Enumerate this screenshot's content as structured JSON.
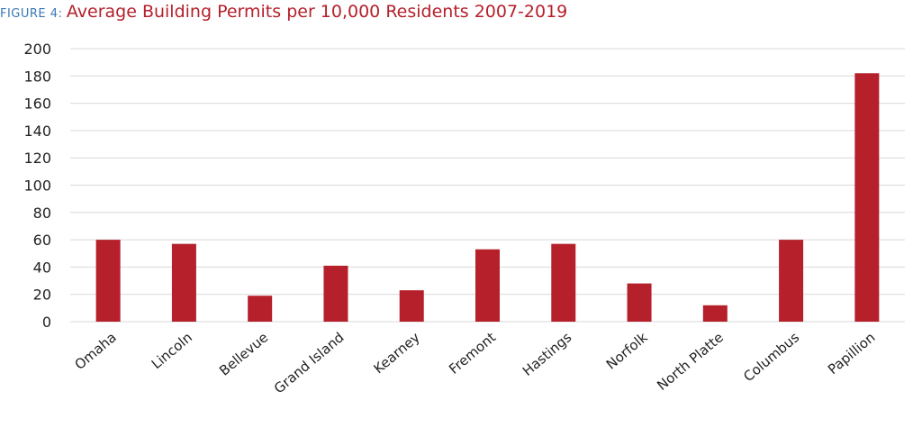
{
  "figure": {
    "label": "FIGURE 4:",
    "title": "Average Building Permits per 10,000 Residents 2007-2019"
  },
  "colors": {
    "bar": "#b5202b",
    "grid": "#d9d9d9",
    "label": "#3a78b6"
  },
  "chart_data": {
    "type": "bar",
    "title": "Average Building Permits per 10,000 Residents 2007-2019",
    "xlabel": "",
    "ylabel": "",
    "ylim": [
      0,
      200
    ],
    "yticks": [
      0,
      20,
      40,
      60,
      80,
      100,
      120,
      140,
      160,
      180,
      200
    ],
    "grid": true,
    "categories": [
      "Omaha",
      "Lincoln",
      "Bellevue",
      "Grand Island",
      "Kearney",
      "Fremont",
      "Hastings",
      "Norfolk",
      "North Platte",
      "Columbus",
      "Papillion"
    ],
    "values": [
      60,
      57,
      19,
      41,
      23,
      53,
      57,
      28,
      12,
      60,
      182
    ]
  }
}
